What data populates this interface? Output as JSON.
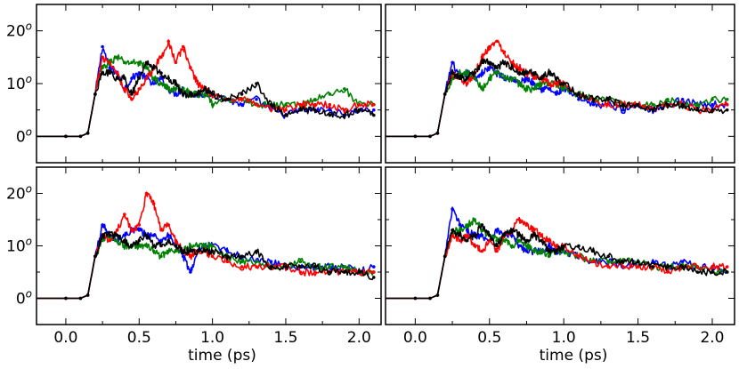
{
  "chart_data": [
    {
      "type": "line",
      "panel": "top-left",
      "xlabel": "",
      "ylabel": "",
      "xlim": [
        -0.2,
        2.15
      ],
      "ylim": [
        -5,
        25
      ],
      "x": [
        0.0,
        0.1,
        0.15,
        0.2,
        0.25,
        0.3,
        0.35,
        0.4,
        0.45,
        0.5,
        0.55,
        0.6,
        0.65,
        0.7,
        0.75,
        0.8,
        0.85,
        0.9,
        0.95,
        1.0,
        1.1,
        1.2,
        1.3,
        1.4,
        1.5,
        1.6,
        1.7,
        1.8,
        1.9,
        2.0,
        2.1
      ],
      "series": [
        {
          "name": "blue",
          "color": "#0000ff",
          "values": [
            0,
            0,
            0.6,
            8,
            17,
            13,
            12,
            9,
            11,
            12,
            11,
            10,
            11,
            9,
            8,
            9,
            8,
            8,
            8,
            8,
            7,
            6,
            7,
            5,
            4,
            5,
            5,
            5,
            4,
            5,
            5
          ]
        },
        {
          "name": "green",
          "color": "#008000",
          "values": [
            0,
            0,
            0.6,
            8,
            13,
            14,
            15,
            14,
            14,
            14,
            13,
            11,
            10,
            9,
            9,
            9,
            8,
            8,
            8,
            6,
            7,
            7,
            6,
            6,
            6,
            6,
            7,
            8,
            9,
            6,
            6
          ]
        },
        {
          "name": "red",
          "color": "#ff0000",
          "values": [
            0,
            0,
            0.6,
            8,
            15,
            14,
            12,
            9,
            7,
            9,
            11,
            13,
            15,
            18,
            14,
            17,
            13,
            10,
            9,
            8,
            7,
            7,
            6,
            5,
            5,
            6,
            6,
            6,
            5,
            6,
            6
          ]
        },
        {
          "name": "black",
          "color": "#000000",
          "values": [
            0,
            0,
            0.6,
            8,
            12,
            12,
            11,
            11,
            8,
            11,
            14,
            13,
            12,
            11,
            10,
            8,
            8,
            8,
            9,
            8,
            7,
            8,
            10,
            6,
            4,
            5,
            5,
            4,
            4,
            5,
            4
          ]
        }
      ]
    },
    {
      "type": "line",
      "panel": "top-right",
      "xlabel": "",
      "ylabel": "",
      "xlim": [
        -0.2,
        2.15
      ],
      "ylim": [
        -5,
        25
      ],
      "x": [
        0.0,
        0.1,
        0.15,
        0.2,
        0.25,
        0.3,
        0.35,
        0.4,
        0.45,
        0.5,
        0.55,
        0.6,
        0.65,
        0.7,
        0.75,
        0.8,
        0.85,
        0.9,
        0.95,
        1.0,
        1.1,
        1.2,
        1.3,
        1.4,
        1.5,
        1.6,
        1.7,
        1.8,
        1.9,
        2.0,
        2.1
      ],
      "series": [
        {
          "name": "blue",
          "color": "#0000ff",
          "values": [
            0,
            0,
            0.6,
            8,
            14,
            11,
            12,
            11,
            12,
            13,
            12,
            11,
            11,
            10,
            11,
            10,
            9,
            9,
            8,
            9,
            7,
            6,
            6,
            5,
            6,
            5,
            6,
            7,
            6,
            6,
            6
          ]
        },
        {
          "name": "green",
          "color": "#008000",
          "values": [
            0,
            0,
            0.6,
            8,
            11,
            12,
            12,
            11,
            9,
            11,
            12,
            11,
            11,
            10,
            9,
            9,
            10,
            10,
            10,
            9,
            8,
            7,
            7,
            6,
            6,
            6,
            7,
            6,
            6,
            7,
            7
          ]
        },
        {
          "name": "red",
          "color": "#ff0000",
          "values": [
            0,
            0,
            0.6,
            8,
            12,
            11,
            10,
            12,
            15,
            17,
            18,
            16,
            14,
            13,
            12,
            11,
            11,
            10,
            10,
            10,
            8,
            7,
            6,
            6,
            6,
            5,
            6,
            6,
            5,
            5,
            6
          ]
        },
        {
          "name": "black",
          "color": "#000000",
          "values": [
            0,
            0,
            0.6,
            8,
            12,
            11,
            11,
            12,
            14,
            14,
            13,
            14,
            13,
            12,
            12,
            12,
            11,
            12,
            11,
            10,
            8,
            7,
            7,
            6,
            6,
            5,
            6,
            6,
            5,
            5,
            5
          ]
        }
      ]
    },
    {
      "type": "line",
      "panel": "bottom-left",
      "xlabel": "time (ps)",
      "ylabel": "",
      "xlim": [
        -0.2,
        2.15
      ],
      "ylim": [
        -5,
        25
      ],
      "x": [
        0.0,
        0.1,
        0.15,
        0.2,
        0.25,
        0.3,
        0.35,
        0.4,
        0.45,
        0.5,
        0.55,
        0.6,
        0.65,
        0.7,
        0.75,
        0.8,
        0.85,
        0.9,
        0.95,
        1.0,
        1.1,
        1.2,
        1.3,
        1.4,
        1.5,
        1.6,
        1.7,
        1.8,
        1.9,
        2.0,
        2.1
      ],
      "series": [
        {
          "name": "blue",
          "color": "#0000ff",
          "values": [
            0,
            0,
            0.6,
            8,
            14,
            12,
            11,
            12,
            13,
            13,
            12,
            12,
            11,
            12,
            10,
            8,
            5,
            9,
            10,
            10,
            9,
            8,
            7,
            7,
            6,
            6,
            6,
            6,
            6,
            5,
            6
          ]
        },
        {
          "name": "green",
          "color": "#008000",
          "values": [
            0,
            0,
            0.6,
            8,
            11,
            12,
            11,
            10,
            10,
            10,
            10,
            9,
            8,
            9,
            9,
            9,
            10,
            10,
            10,
            10,
            8,
            7,
            7,
            6,
            6,
            7,
            6,
            6,
            6,
            5,
            5
          ]
        },
        {
          "name": "red",
          "color": "#ff0000",
          "values": [
            0,
            0,
            0.6,
            8,
            12,
            11,
            13,
            16,
            13,
            14,
            20,
            18,
            13,
            14,
            11,
            9,
            8,
            9,
            9,
            8,
            7,
            6,
            6,
            6,
            6,
            5,
            5,
            5,
            5,
            5,
            5
          ]
        },
        {
          "name": "black",
          "color": "#000000",
          "values": [
            0,
            0,
            0.6,
            8,
            12,
            12,
            12,
            11,
            10,
            11,
            12,
            10,
            10,
            11,
            10,
            9,
            9,
            9,
            9,
            9,
            8,
            8,
            9,
            6,
            6,
            6,
            6,
            5,
            5,
            5,
            4
          ]
        }
      ]
    },
    {
      "type": "line",
      "panel": "bottom-right",
      "xlabel": "time (ps)",
      "ylabel": "",
      "xlim": [
        -0.2,
        2.15
      ],
      "ylim": [
        -5,
        25
      ],
      "x": [
        0.0,
        0.1,
        0.15,
        0.2,
        0.25,
        0.3,
        0.35,
        0.4,
        0.45,
        0.5,
        0.55,
        0.6,
        0.65,
        0.7,
        0.75,
        0.8,
        0.85,
        0.9,
        0.95,
        1.0,
        1.1,
        1.2,
        1.3,
        1.4,
        1.5,
        1.6,
        1.7,
        1.8,
        1.9,
        2.0,
        2.1
      ],
      "series": [
        {
          "name": "blue",
          "color": "#0000ff",
          "values": [
            0,
            0,
            0.6,
            8,
            17,
            14,
            13,
            12,
            12,
            11,
            13,
            12,
            12,
            10,
            9,
            9,
            9,
            10,
            9,
            9,
            8,
            7,
            7,
            6,
            7,
            7,
            6,
            7,
            6,
            6,
            5
          ]
        },
        {
          "name": "green",
          "color": "#008000",
          "values": [
            0,
            0,
            0.6,
            8,
            13,
            13,
            14,
            15,
            13,
            12,
            11,
            11,
            10,
            11,
            10,
            9,
            9,
            8,
            9,
            9,
            8,
            7,
            7,
            7,
            7,
            6,
            6,
            6,
            6,
            5,
            5
          ]
        },
        {
          "name": "red",
          "color": "#ff0000",
          "values": [
            0,
            0,
            0.6,
            8,
            12,
            11,
            12,
            10,
            9,
            11,
            9,
            12,
            13,
            15,
            14,
            13,
            12,
            11,
            10,
            10,
            8,
            7,
            6,
            6,
            6,
            6,
            5,
            6,
            6,
            6,
            6
          ]
        },
        {
          "name": "black",
          "color": "#000000",
          "values": [
            0,
            0,
            0.6,
            8,
            13,
            12,
            11,
            12,
            14,
            12,
            10,
            12,
            13,
            12,
            11,
            12,
            11,
            9,
            9,
            10,
            10,
            9,
            8,
            7,
            7,
            6,
            6,
            6,
            5,
            5,
            5
          ]
        }
      ]
    }
  ],
  "ytick_labels": [
    {
      "base": "0",
      "sup": "o"
    },
    {
      "base": "10",
      "sup": "o"
    },
    {
      "base": "20",
      "sup": "o"
    }
  ],
  "xtick_labels": [
    "0.0",
    "0.5",
    "1.0",
    "1.5",
    "2.0"
  ],
  "xtick_values": [
    0.0,
    0.5,
    1.0,
    1.5,
    2.0
  ],
  "ytick_values": [
    0,
    10,
    20
  ],
  "ytick_minor": [
    -5,
    5,
    15,
    25
  ]
}
